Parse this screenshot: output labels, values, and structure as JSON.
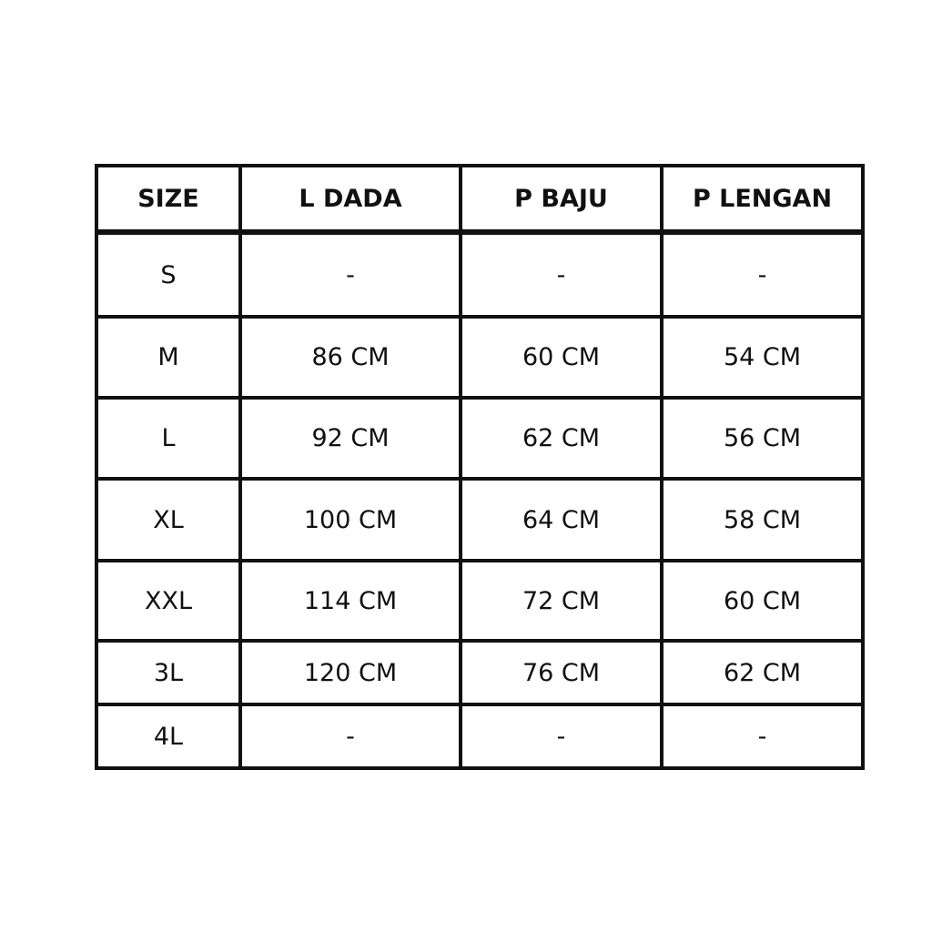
{
  "table": {
    "headers": [
      "SIZE",
      "L DADA",
      "P BAJU",
      "P LENGAN"
    ],
    "rows": [
      [
        "S",
        "-",
        "-",
        "-"
      ],
      [
        "M",
        "86 CM",
        "60 CM",
        "54 CM"
      ],
      [
        "L",
        "92 CM",
        "62 CM",
        "56 CM"
      ],
      [
        "XL",
        "100 CM",
        "64 CM",
        "58 CM"
      ],
      [
        "XXL",
        "114 CM",
        "72 CM",
        "60 CM"
      ],
      [
        "3L",
        "120 CM",
        "76 CM",
        "62 CM"
      ],
      [
        "4L",
        "-",
        "-",
        "-"
      ]
    ]
  }
}
